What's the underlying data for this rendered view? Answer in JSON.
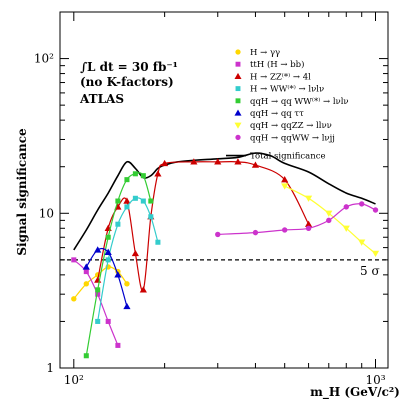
{
  "chart_data": {
    "type": "line",
    "xlabel": "m_H (GeV/c²)",
    "ylabel": "Signal significance",
    "x_scale": "log",
    "y_scale": "log",
    "xlim": [
      90,
      1100
    ],
    "ylim": [
      1,
      200
    ],
    "x_ticks": [
      {
        "value": 100,
        "label": "10²"
      },
      {
        "value": 1000,
        "label": "10³"
      }
    ],
    "y_ticks": [
      {
        "value": 1,
        "label": "1"
      },
      {
        "value": 10,
        "label": "10"
      },
      {
        "value": 100,
        "label": "10²"
      }
    ],
    "annotations": {
      "lumi": "∫L dt = 30 fb⁻¹",
      "kfactor": "(no K-factors)",
      "experiment": "ATLAS",
      "five_sigma": "5 σ"
    },
    "reference_line": {
      "y": 5,
      "label": "5 σ"
    },
    "total": {
      "name": "Total significance",
      "x": [
        100,
        110,
        120,
        130,
        140,
        150,
        160,
        170,
        180,
        190,
        200,
        220,
        250,
        300,
        350,
        400,
        450,
        500,
        600,
        700,
        800,
        900,
        1000
      ],
      "y": [
        5.8,
        7.8,
        10.5,
        13.5,
        17.5,
        21.5,
        19.5,
        17.0,
        17.5,
        19.5,
        20.5,
        21.5,
        22.0,
        22.5,
        23.0,
        24.5,
        23.5,
        21.0,
        18.5,
        15.5,
        13.5,
        12.5,
        11.5
      ]
    },
    "series": [
      {
        "name": "H → γγ",
        "color": "#ffd700",
        "marker": "circle",
        "x": [
          100,
          110,
          120,
          130,
          140,
          150
        ],
        "y": [
          2.8,
          3.5,
          4.0,
          4.5,
          4.2,
          3.5
        ]
      },
      {
        "name": "ttH (H → bb)",
        "color": "#cc33cc",
        "marker": "square",
        "x": [
          100,
          110,
          120,
          130,
          140
        ],
        "y": [
          5.0,
          4.2,
          3.0,
          2.0,
          1.4
        ]
      },
      {
        "name": "H → ZZ⁽*⁾ → 4l",
        "color": "#cc0000",
        "marker": "triangle",
        "x": [
          120,
          130,
          140,
          150,
          160,
          170,
          180,
          190,
          200,
          250,
          300,
          350,
          400,
          500,
          600
        ],
        "y": [
          3.7,
          8.0,
          11.0,
          12.0,
          5.5,
          3.2,
          9.5,
          18.0,
          21.0,
          21.5,
          21.5,
          21.5,
          20.5,
          16.5,
          8.5
        ]
      },
      {
        "name": "H → WW⁽*⁾ → lνlν",
        "color": "#33cccc",
        "marker": "square",
        "x": [
          120,
          130,
          140,
          150,
          160,
          170,
          180,
          190
        ],
        "y": [
          2.0,
          5.0,
          8.5,
          11.0,
          12.5,
          12.0,
          9.5,
          6.5
        ]
      },
      {
        "name": "qqH → qq WW⁽*⁾ → lνlν",
        "color": "#33cc33",
        "marker": "square",
        "x": [
          110,
          120,
          130,
          140,
          150,
          160,
          170,
          180
        ],
        "y": [
          1.2,
          3.2,
          7.0,
          12.0,
          16.5,
          18.0,
          17.5,
          12.0
        ]
      },
      {
        "name": "qqH → qq ττ",
        "color": "#0000cc",
        "marker": "triangle",
        "x": [
          110,
          120,
          130,
          140,
          150
        ],
        "y": [
          4.5,
          5.8,
          5.6,
          4.0,
          2.5
        ]
      },
      {
        "name": "qqH → qqZZ → llνν",
        "color": "#ffff33",
        "marker": "triangle-down",
        "x": [
          500,
          600,
          700,
          800,
          900,
          1000
        ],
        "y": [
          15.0,
          12.5,
          10.0,
          8.0,
          6.5,
          5.5
        ]
      },
      {
        "name": "qqH → qqWW → lνjj",
        "color": "#cc33cc",
        "marker": "circle",
        "x": [
          300,
          400,
          500,
          600,
          700,
          800,
          900,
          1000
        ],
        "y": [
          7.3,
          7.5,
          7.8,
          8.0,
          9.0,
          11.0,
          11.5,
          10.5
        ]
      }
    ]
  }
}
